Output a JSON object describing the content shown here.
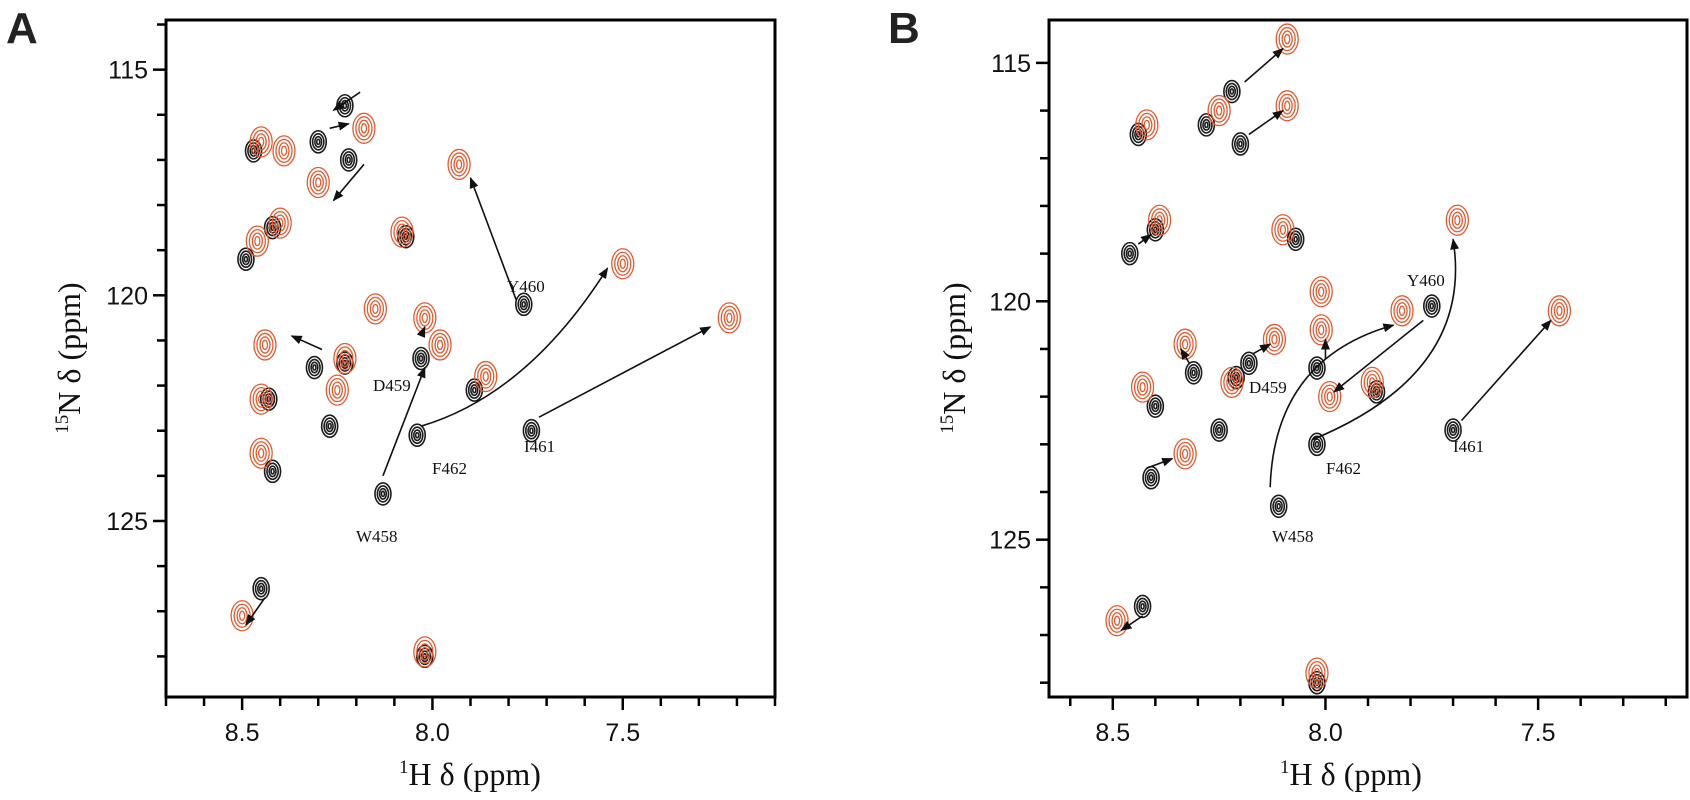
{
  "colors": {
    "reference": "#1c1c1c",
    "shifted": "#e8592f"
  },
  "chart_data": [
    {
      "type": "scatter",
      "panel": "A",
      "xlabel": "H δ (ppm)",
      "xlabel_sup": "1",
      "ylabel": "N δ (ppm)",
      "ylabel_sup": "15",
      "x_reversed": true,
      "xlim": [
        8.7,
        7.1
      ],
      "ylim": [
        113.9,
        128.9
      ],
      "xticks": [
        "8.5",
        "8.0",
        "7.5"
      ],
      "yticks": [
        "115",
        "120",
        "125"
      ],
      "series": [
        {
          "color": "#1c1c1c",
          "points": [
            [
              8.47,
              116.8
            ],
            [
              8.23,
              115.8
            ],
            [
              8.3,
              116.6
            ],
            [
              8.22,
              117.0
            ],
            [
              8.42,
              118.5
            ],
            [
              8.49,
              119.2
            ],
            [
              8.07,
              118.7
            ],
            [
              8.31,
              121.6
            ],
            [
              8.23,
              121.5
            ],
            [
              8.43,
              122.3
            ],
            [
              8.03,
              121.4
            ],
            [
              7.89,
              122.1
            ],
            [
              8.27,
              122.9
            ],
            [
              8.04,
              123.1
            ],
            [
              7.74,
              123.0
            ],
            [
              8.42,
              123.9
            ],
            [
              8.13,
              124.4
            ],
            [
              7.76,
              120.2
            ],
            [
              8.45,
              126.5
            ],
            [
              8.02,
              128.0
            ]
          ]
        },
        {
          "color": "#e8592f",
          "points": [
            [
              8.45,
              116.6
            ],
            [
              8.39,
              116.8
            ],
            [
              8.18,
              116.3
            ],
            [
              8.3,
              117.5
            ],
            [
              8.46,
              118.8
            ],
            [
              8.4,
              118.4
            ],
            [
              8.08,
              118.6
            ],
            [
              7.93,
              117.1
            ],
            [
              8.15,
              120.3
            ],
            [
              8.02,
              120.5
            ],
            [
              7.98,
              121.1
            ],
            [
              8.44,
              121.1
            ],
            [
              8.23,
              121.4
            ],
            [
              8.25,
              122.1
            ],
            [
              7.86,
              121.8
            ],
            [
              8.45,
              122.3
            ],
            [
              8.45,
              123.5
            ],
            [
              7.5,
              119.3
            ],
            [
              7.22,
              120.5
            ],
            [
              8.5,
              127.1
            ],
            [
              8.02,
              127.9
            ]
          ]
        }
      ],
      "annotations": [
        {
          "text": "Y460"
        },
        {
          "text": "D459"
        },
        {
          "text": "F462"
        },
        {
          "text": "I461"
        },
        {
          "text": "W458"
        }
      ]
    },
    {
      "type": "scatter",
      "panel": "B",
      "xlabel": "H δ (ppm)",
      "xlabel_sup": "1",
      "ylabel": "N δ (ppm)",
      "ylabel_sup": "15",
      "x_reversed": true,
      "xlim": [
        8.65,
        7.15
      ],
      "ylim": [
        114.1,
        128.3
      ],
      "xticks": [
        "8.5",
        "8.0",
        "7.5"
      ],
      "yticks": [
        "115",
        "120",
        "125"
      ],
      "series": [
        {
          "color": "#1c1c1c",
          "points": [
            [
              8.44,
              116.5
            ],
            [
              8.28,
              116.3
            ],
            [
              8.22,
              115.6
            ],
            [
              8.2,
              116.7
            ],
            [
              8.4,
              118.5
            ],
            [
              8.46,
              119.0
            ],
            [
              8.07,
              118.7
            ],
            [
              8.31,
              121.5
            ],
            [
              8.18,
              121.3
            ],
            [
              8.21,
              121.6
            ],
            [
              8.02,
              121.4
            ],
            [
              7.75,
              120.1
            ],
            [
              7.88,
              121.9
            ],
            [
              8.4,
              122.2
            ],
            [
              8.25,
              122.7
            ],
            [
              8.02,
              123.0
            ],
            [
              7.7,
              122.7
            ],
            [
              8.41,
              123.7
            ],
            [
              8.11,
              124.3
            ],
            [
              8.43,
              126.4
            ],
            [
              8.02,
              128.0
            ]
          ]
        },
        {
          "color": "#e8592f",
          "points": [
            [
              8.42,
              116.3
            ],
            [
              8.25,
              116.0
            ],
            [
              8.09,
              114.5
            ],
            [
              8.09,
              115.9
            ],
            [
              8.39,
              118.3
            ],
            [
              8.1,
              118.5
            ],
            [
              8.01,
              119.8
            ],
            [
              8.33,
              120.9
            ],
            [
              8.12,
              120.8
            ],
            [
              8.01,
              120.6
            ],
            [
              8.22,
              121.7
            ],
            [
              8.43,
              121.8
            ],
            [
              7.99,
              122.0
            ],
            [
              7.82,
              120.2
            ],
            [
              7.89,
              121.7
            ],
            [
              7.69,
              118.3
            ],
            [
              7.45,
              120.2
            ],
            [
              8.33,
              123.2
            ],
            [
              8.49,
              126.7
            ],
            [
              8.02,
              127.8
            ]
          ]
        }
      ],
      "annotations": [
        {
          "text": "Y460"
        },
        {
          "text": "D459"
        },
        {
          "text": "F462"
        },
        {
          "text": "I461"
        },
        {
          "text": "W458"
        }
      ]
    }
  ]
}
